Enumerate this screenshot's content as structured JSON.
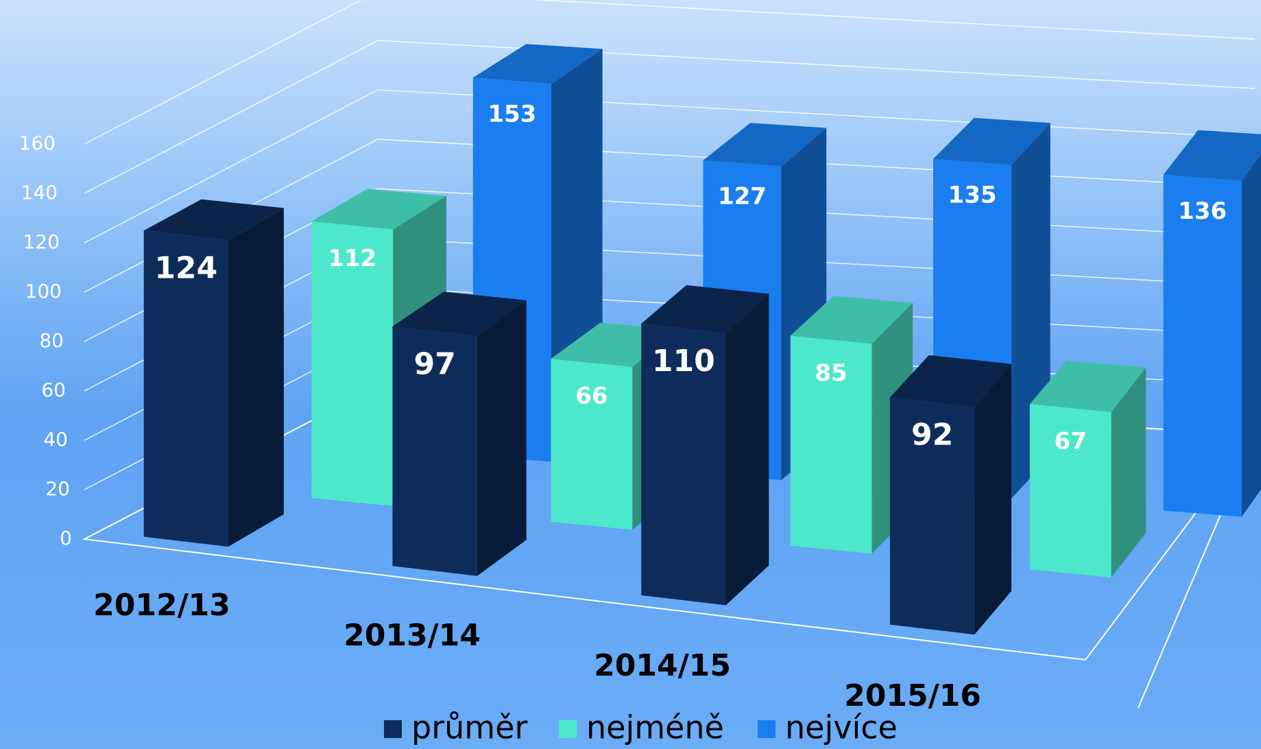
{
  "chart_data": {
    "type": "bar3d",
    "categories": [
      "2012/13",
      "2013/14",
      "2014/15",
      "2015/16"
    ],
    "series": [
      {
        "name": "průměr",
        "color": "#0d2c5a",
        "values": [
          124,
          97,
          110,
          92
        ]
      },
      {
        "name": "nejméně",
        "color": "#4de8cc",
        "values": [
          112,
          66,
          85,
          67
        ]
      },
      {
        "name": "nejvíce",
        "color": "#1a7ef0",
        "values": [
          153,
          127,
          135,
          136
        ]
      }
    ],
    "ylim": [
      0,
      180
    ],
    "yticks": [
      0,
      20,
      40,
      60,
      80,
      100,
      120,
      140,
      160
    ],
    "grid": true,
    "legend": "bottom"
  }
}
